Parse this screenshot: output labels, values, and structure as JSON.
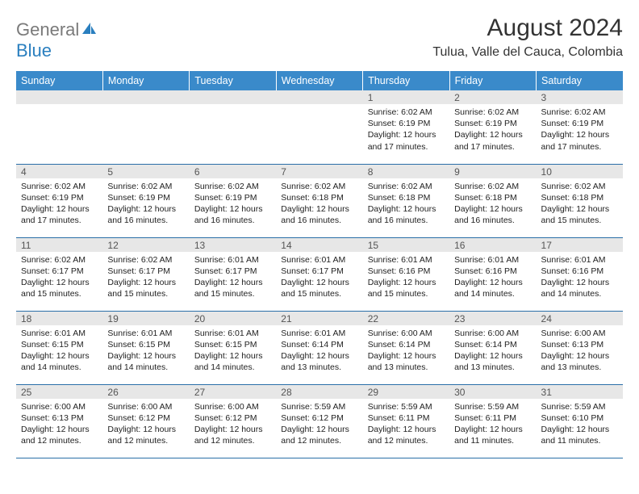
{
  "brand": {
    "general": "General",
    "blue": "Blue",
    "icon_color": "#2a7fbf",
    "general_color": "#7a7a7a"
  },
  "title": "August 2024",
  "location": "Tulua, Valle del Cauca, Colombia",
  "colors": {
    "header_bg": "#3a8aca",
    "header_text": "#ffffff",
    "daynum_bg": "#e7e7e7",
    "daynum_text": "#555555",
    "row_border": "#2a6fa8",
    "body_text": "#222222",
    "page_bg": "#ffffff"
  },
  "day_headers": [
    "Sunday",
    "Monday",
    "Tuesday",
    "Wednesday",
    "Thursday",
    "Friday",
    "Saturday"
  ],
  "weeks": [
    [
      {
        "empty": true
      },
      {
        "empty": true
      },
      {
        "empty": true
      },
      {
        "empty": true
      },
      {
        "num": "1",
        "sunrise": "Sunrise: 6:02 AM",
        "sunset": "Sunset: 6:19 PM",
        "daylight": "Daylight: 12 hours and 17 minutes."
      },
      {
        "num": "2",
        "sunrise": "Sunrise: 6:02 AM",
        "sunset": "Sunset: 6:19 PM",
        "daylight": "Daylight: 12 hours and 17 minutes."
      },
      {
        "num": "3",
        "sunrise": "Sunrise: 6:02 AM",
        "sunset": "Sunset: 6:19 PM",
        "daylight": "Daylight: 12 hours and 17 minutes."
      }
    ],
    [
      {
        "num": "4",
        "sunrise": "Sunrise: 6:02 AM",
        "sunset": "Sunset: 6:19 PM",
        "daylight": "Daylight: 12 hours and 17 minutes."
      },
      {
        "num": "5",
        "sunrise": "Sunrise: 6:02 AM",
        "sunset": "Sunset: 6:19 PM",
        "daylight": "Daylight: 12 hours and 16 minutes."
      },
      {
        "num": "6",
        "sunrise": "Sunrise: 6:02 AM",
        "sunset": "Sunset: 6:19 PM",
        "daylight": "Daylight: 12 hours and 16 minutes."
      },
      {
        "num": "7",
        "sunrise": "Sunrise: 6:02 AM",
        "sunset": "Sunset: 6:18 PM",
        "daylight": "Daylight: 12 hours and 16 minutes."
      },
      {
        "num": "8",
        "sunrise": "Sunrise: 6:02 AM",
        "sunset": "Sunset: 6:18 PM",
        "daylight": "Daylight: 12 hours and 16 minutes."
      },
      {
        "num": "9",
        "sunrise": "Sunrise: 6:02 AM",
        "sunset": "Sunset: 6:18 PM",
        "daylight": "Daylight: 12 hours and 16 minutes."
      },
      {
        "num": "10",
        "sunrise": "Sunrise: 6:02 AM",
        "sunset": "Sunset: 6:18 PM",
        "daylight": "Daylight: 12 hours and 15 minutes."
      }
    ],
    [
      {
        "num": "11",
        "sunrise": "Sunrise: 6:02 AM",
        "sunset": "Sunset: 6:17 PM",
        "daylight": "Daylight: 12 hours and 15 minutes."
      },
      {
        "num": "12",
        "sunrise": "Sunrise: 6:02 AM",
        "sunset": "Sunset: 6:17 PM",
        "daylight": "Daylight: 12 hours and 15 minutes."
      },
      {
        "num": "13",
        "sunrise": "Sunrise: 6:01 AM",
        "sunset": "Sunset: 6:17 PM",
        "daylight": "Daylight: 12 hours and 15 minutes."
      },
      {
        "num": "14",
        "sunrise": "Sunrise: 6:01 AM",
        "sunset": "Sunset: 6:17 PM",
        "daylight": "Daylight: 12 hours and 15 minutes."
      },
      {
        "num": "15",
        "sunrise": "Sunrise: 6:01 AM",
        "sunset": "Sunset: 6:16 PM",
        "daylight": "Daylight: 12 hours and 15 minutes."
      },
      {
        "num": "16",
        "sunrise": "Sunrise: 6:01 AM",
        "sunset": "Sunset: 6:16 PM",
        "daylight": "Daylight: 12 hours and 14 minutes."
      },
      {
        "num": "17",
        "sunrise": "Sunrise: 6:01 AM",
        "sunset": "Sunset: 6:16 PM",
        "daylight": "Daylight: 12 hours and 14 minutes."
      }
    ],
    [
      {
        "num": "18",
        "sunrise": "Sunrise: 6:01 AM",
        "sunset": "Sunset: 6:15 PM",
        "daylight": "Daylight: 12 hours and 14 minutes."
      },
      {
        "num": "19",
        "sunrise": "Sunrise: 6:01 AM",
        "sunset": "Sunset: 6:15 PM",
        "daylight": "Daylight: 12 hours and 14 minutes."
      },
      {
        "num": "20",
        "sunrise": "Sunrise: 6:01 AM",
        "sunset": "Sunset: 6:15 PM",
        "daylight": "Daylight: 12 hours and 14 minutes."
      },
      {
        "num": "21",
        "sunrise": "Sunrise: 6:01 AM",
        "sunset": "Sunset: 6:14 PM",
        "daylight": "Daylight: 12 hours and 13 minutes."
      },
      {
        "num": "22",
        "sunrise": "Sunrise: 6:00 AM",
        "sunset": "Sunset: 6:14 PM",
        "daylight": "Daylight: 12 hours and 13 minutes."
      },
      {
        "num": "23",
        "sunrise": "Sunrise: 6:00 AM",
        "sunset": "Sunset: 6:14 PM",
        "daylight": "Daylight: 12 hours and 13 minutes."
      },
      {
        "num": "24",
        "sunrise": "Sunrise: 6:00 AM",
        "sunset": "Sunset: 6:13 PM",
        "daylight": "Daylight: 12 hours and 13 minutes."
      }
    ],
    [
      {
        "num": "25",
        "sunrise": "Sunrise: 6:00 AM",
        "sunset": "Sunset: 6:13 PM",
        "daylight": "Daylight: 12 hours and 12 minutes."
      },
      {
        "num": "26",
        "sunrise": "Sunrise: 6:00 AM",
        "sunset": "Sunset: 6:12 PM",
        "daylight": "Daylight: 12 hours and 12 minutes."
      },
      {
        "num": "27",
        "sunrise": "Sunrise: 6:00 AM",
        "sunset": "Sunset: 6:12 PM",
        "daylight": "Daylight: 12 hours and 12 minutes."
      },
      {
        "num": "28",
        "sunrise": "Sunrise: 5:59 AM",
        "sunset": "Sunset: 6:12 PM",
        "daylight": "Daylight: 12 hours and 12 minutes."
      },
      {
        "num": "29",
        "sunrise": "Sunrise: 5:59 AM",
        "sunset": "Sunset: 6:11 PM",
        "daylight": "Daylight: 12 hours and 12 minutes."
      },
      {
        "num": "30",
        "sunrise": "Sunrise: 5:59 AM",
        "sunset": "Sunset: 6:11 PM",
        "daylight": "Daylight: 12 hours and 11 minutes."
      },
      {
        "num": "31",
        "sunrise": "Sunrise: 5:59 AM",
        "sunset": "Sunset: 6:10 PM",
        "daylight": "Daylight: 12 hours and 11 minutes."
      }
    ]
  ]
}
